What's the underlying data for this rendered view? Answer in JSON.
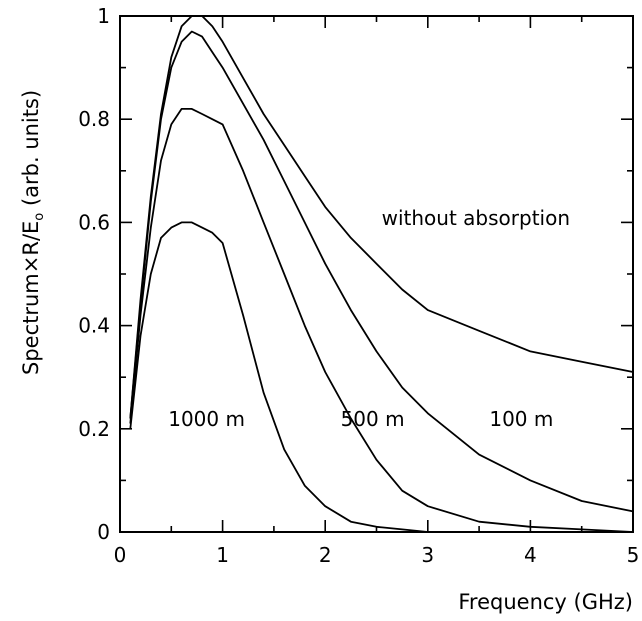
{
  "chart_data": {
    "type": "line",
    "xlabel": "Frequency (GHz)",
    "ylabel_main": "Spectrum×R/E",
    "ylabel_sub": "o",
    "ylabel_tail": " (arb. units)",
    "xlim": [
      0,
      5
    ],
    "ylim": [
      0,
      1
    ],
    "xticks": [
      0,
      1,
      2,
      3,
      4,
      5
    ],
    "yticks": [
      0,
      0.2,
      0.4,
      0.6,
      0.8,
      1
    ],
    "xtick_labels": [
      "0",
      "1",
      "2",
      "3",
      "4",
      "5"
    ],
    "ytick_labels": [
      "0",
      "0.2",
      "0.4",
      "0.6",
      "0.8",
      "1"
    ],
    "grid": false,
    "series": [
      {
        "name": "without absorption",
        "x": [
          0.1,
          0.2,
          0.3,
          0.4,
          0.5,
          0.6,
          0.7,
          0.8,
          0.9,
          1.0,
          1.2,
          1.4,
          1.6,
          1.8,
          2.0,
          2.25,
          2.5,
          2.75,
          3.0,
          3.5,
          4.0,
          4.5,
          5.0
        ],
        "y": [
          0.22,
          0.45,
          0.65,
          0.81,
          0.92,
          0.98,
          1.0,
          1.0,
          0.98,
          0.95,
          0.88,
          0.81,
          0.75,
          0.69,
          0.63,
          0.57,
          0.52,
          0.47,
          0.43,
          0.39,
          0.35,
          0.33,
          0.31
        ]
      },
      {
        "name": "100 m",
        "x": [
          0.1,
          0.2,
          0.3,
          0.4,
          0.5,
          0.6,
          0.7,
          0.8,
          0.9,
          1.0,
          1.2,
          1.4,
          1.6,
          1.8,
          2.0,
          2.25,
          2.5,
          2.75,
          3.0,
          3.5,
          4.0,
          4.5,
          5.0
        ],
        "y": [
          0.22,
          0.44,
          0.64,
          0.8,
          0.9,
          0.95,
          0.97,
          0.96,
          0.93,
          0.9,
          0.83,
          0.76,
          0.68,
          0.6,
          0.52,
          0.43,
          0.35,
          0.28,
          0.23,
          0.15,
          0.1,
          0.06,
          0.04
        ]
      },
      {
        "name": "500 m",
        "x": [
          0.1,
          0.2,
          0.3,
          0.4,
          0.5,
          0.6,
          0.7,
          0.8,
          0.9,
          1.0,
          1.2,
          1.4,
          1.6,
          1.8,
          2.0,
          2.25,
          2.5,
          2.75,
          3.0,
          3.5,
          4.0,
          4.5,
          5.0
        ],
        "y": [
          0.21,
          0.42,
          0.59,
          0.72,
          0.79,
          0.82,
          0.82,
          0.81,
          0.8,
          0.79,
          0.7,
          0.6,
          0.5,
          0.4,
          0.31,
          0.22,
          0.14,
          0.08,
          0.05,
          0.02,
          0.01,
          0.005,
          0.0
        ]
      },
      {
        "name": "1000 m",
        "x": [
          0.1,
          0.2,
          0.3,
          0.4,
          0.5,
          0.6,
          0.7,
          0.8,
          0.9,
          1.0,
          1.2,
          1.4,
          1.6,
          1.8,
          2.0,
          2.25,
          2.5,
          2.75,
          3.0,
          3.5,
          4.0,
          4.5,
          5.0
        ],
        "y": [
          0.2,
          0.38,
          0.5,
          0.57,
          0.59,
          0.6,
          0.6,
          0.59,
          0.58,
          0.56,
          0.42,
          0.27,
          0.16,
          0.09,
          0.05,
          0.02,
          0.01,
          0.005,
          0.0,
          0.0,
          0.0,
          0.0,
          0.0
        ]
      }
    ],
    "annotations": [
      {
        "text": "without absorption",
        "x": 2.55,
        "y": 0.595
      },
      {
        "text": "100 m",
        "x": 3.6,
        "y": 0.205
      },
      {
        "text": "500 m",
        "x": 2.15,
        "y": 0.205
      },
      {
        "text": "1000 m",
        "x": 0.47,
        "y": 0.205
      }
    ]
  }
}
